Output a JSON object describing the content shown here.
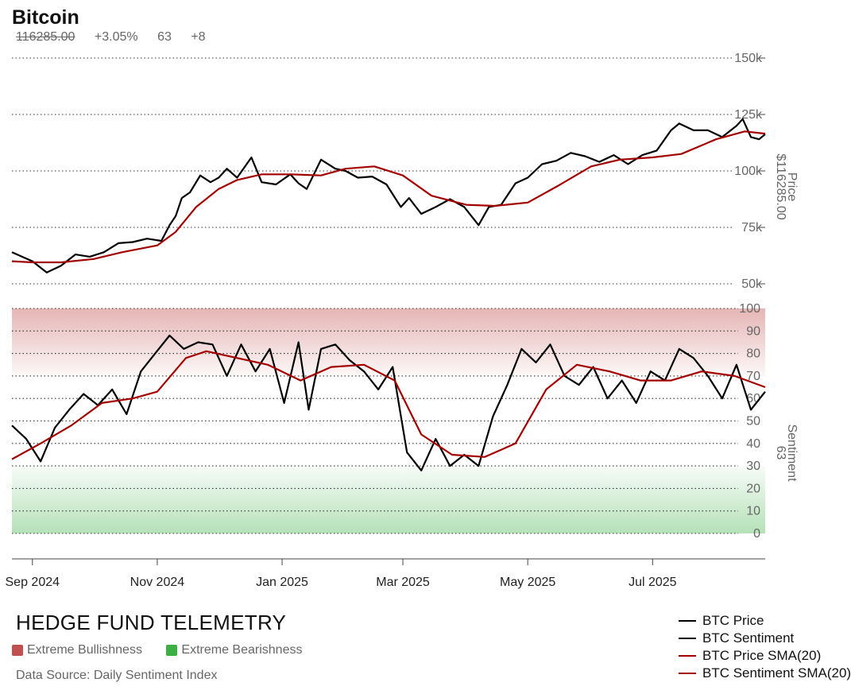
{
  "header": {
    "title": "Bitcoin",
    "price": "116285.00",
    "change": "+3.05%",
    "sentiment": "63",
    "sentiment_change": "+8"
  },
  "footer": {
    "brand": "HEDGE FUND TELEMETRY",
    "extreme_bull": "Extreme Bullishness",
    "extreme_bear": "Extreme Bearishness",
    "source": "Data Source: Daily Sentiment Index"
  },
  "colors": {
    "price_line": "#000000",
    "sma_line": "#a40000",
    "bull_zone": "#c0504d",
    "bear_zone": "#3cb043",
    "grid": "#333333",
    "axis_text": "#666666"
  },
  "chart_data": [
    {
      "type": "line",
      "ylabel": "Price",
      "ylabel_value": "$116285.00",
      "ylim": [
        50000,
        150000
      ],
      "yticks": [
        50000,
        75000,
        100000,
        125000,
        150000
      ],
      "ytick_labels": [
        "50k",
        "75k",
        "100k",
        "125k",
        "150k"
      ],
      "grid": true,
      "series": [
        {
          "name": "BTC Price",
          "color": "#000000",
          "x": [
            "2024-08-22",
            "2024-09-01",
            "2024-09-08",
            "2024-09-15",
            "2024-09-22",
            "2024-09-29",
            "2024-10-06",
            "2024-10-13",
            "2024-10-20",
            "2024-10-27",
            "2024-11-03",
            "2024-11-07",
            "2024-11-10",
            "2024-11-13",
            "2024-11-17",
            "2024-11-22",
            "2024-11-27",
            "2024-12-01",
            "2024-12-05",
            "2024-12-10",
            "2024-12-17",
            "2024-12-22",
            "2024-12-29",
            "2025-01-05",
            "2025-01-09",
            "2025-01-13",
            "2025-01-20",
            "2025-01-27",
            "2025-02-01",
            "2025-02-07",
            "2025-02-14",
            "2025-02-21",
            "2025-02-28",
            "2025-03-04",
            "2025-03-10",
            "2025-03-17",
            "2025-03-24",
            "2025-03-31",
            "2025-04-07",
            "2025-04-12",
            "2025-04-18",
            "2025-04-25",
            "2025-05-01",
            "2025-05-08",
            "2025-05-15",
            "2025-05-22",
            "2025-05-29",
            "2025-06-05",
            "2025-06-12",
            "2025-06-19",
            "2025-06-26",
            "2025-07-03",
            "2025-07-10",
            "2025-07-14",
            "2025-07-21",
            "2025-07-28",
            "2025-08-04",
            "2025-08-11",
            "2025-08-14",
            "2025-08-18",
            "2025-08-22",
            "2025-08-25"
          ],
          "values": [
            64000,
            60000,
            55000,
            58000,
            63000,
            62000,
            64000,
            68000,
            68500,
            70000,
            69000,
            76000,
            80000,
            88000,
            90500,
            98000,
            95000,
            97000,
            101000,
            97000,
            106000,
            95000,
            94000,
            98500,
            94500,
            92000,
            105000,
            101000,
            100000,
            97000,
            97500,
            94000,
            84000,
            88000,
            81000,
            84000,
            87500,
            84000,
            76000,
            84000,
            85000,
            94500,
            97000,
            103000,
            104500,
            108000,
            106500,
            104000,
            107000,
            103000,
            107000,
            109000,
            118000,
            121000,
            118000,
            118000,
            115000,
            120000,
            123000,
            115000,
            114000,
            116285
          ]
        },
        {
          "name": "BTC Price SMA(20)",
          "color": "#a40000",
          "x": [
            "2024-08-22",
            "2024-09-01",
            "2024-09-15",
            "2024-10-01",
            "2024-10-15",
            "2024-11-01",
            "2024-11-10",
            "2024-11-20",
            "2024-12-01",
            "2024-12-10",
            "2024-12-22",
            "2025-01-05",
            "2025-01-20",
            "2025-02-01",
            "2025-02-15",
            "2025-03-01",
            "2025-03-15",
            "2025-04-01",
            "2025-04-15",
            "2025-05-01",
            "2025-05-15",
            "2025-06-01",
            "2025-06-15",
            "2025-07-01",
            "2025-07-15",
            "2025-08-01",
            "2025-08-15",
            "2025-08-25"
          ],
          "values": [
            60000,
            59500,
            59500,
            61000,
            64000,
            67000,
            73000,
            84000,
            92000,
            96000,
            98500,
            98500,
            98000,
            101000,
            102000,
            98000,
            89000,
            85000,
            84500,
            86000,
            93000,
            102000,
            105000,
            106000,
            107500,
            114000,
            117500,
            116500
          ]
        }
      ]
    },
    {
      "type": "line",
      "ylabel": "Sentiment",
      "ylabel_value": "63",
      "ylim": [
        0,
        100
      ],
      "yticks": [
        0,
        10,
        20,
        30,
        40,
        50,
        60,
        70,
        80,
        90,
        100
      ],
      "ytick_labels": [
        "0",
        "10",
        "20",
        "30",
        "40",
        "50",
        "60",
        "70",
        "80",
        "90",
        "100"
      ],
      "grid": true,
      "zones": [
        {
          "name": "Extreme Bullishness",
          "range": [
            70,
            100
          ],
          "color": "#c0504d"
        },
        {
          "name": "Extreme Bearishness",
          "range": [
            0,
            30
          ],
          "color": "#3cb043"
        }
      ],
      "series": [
        {
          "name": "BTC Sentiment",
          "color": "#000000",
          "x": [
            "2024-08-22",
            "2024-08-29",
            "2024-09-05",
            "2024-09-12",
            "2024-09-19",
            "2024-09-26",
            "2024-10-03",
            "2024-10-10",
            "2024-10-17",
            "2024-10-24",
            "2024-10-31",
            "2024-11-07",
            "2024-11-14",
            "2024-11-21",
            "2024-11-28",
            "2024-12-05",
            "2024-12-12",
            "2024-12-19",
            "2024-12-26",
            "2025-01-02",
            "2025-01-09",
            "2025-01-14",
            "2025-01-20",
            "2025-01-27",
            "2025-02-03",
            "2025-02-10",
            "2025-02-17",
            "2025-02-24",
            "2025-03-03",
            "2025-03-10",
            "2025-03-17",
            "2025-03-24",
            "2025-03-31",
            "2025-04-07",
            "2025-04-14",
            "2025-04-21",
            "2025-04-28",
            "2025-05-05",
            "2025-05-12",
            "2025-05-19",
            "2025-05-26",
            "2025-06-02",
            "2025-06-09",
            "2025-06-16",
            "2025-06-23",
            "2025-06-30",
            "2025-07-07",
            "2025-07-14",
            "2025-07-21",
            "2025-07-28",
            "2025-08-04",
            "2025-08-11",
            "2025-08-18",
            "2025-08-25"
          ],
          "values": [
            48,
            42,
            32,
            47,
            55,
            62,
            57,
            64,
            53,
            72,
            80,
            88,
            82,
            85,
            84,
            70,
            84,
            72,
            82,
            58,
            85,
            55,
            82,
            84,
            77,
            72,
            64,
            74,
            36,
            28,
            42,
            30,
            35,
            30,
            52,
            66,
            82,
            76,
            84,
            70,
            66,
            74,
            60,
            68,
            58,
            72,
            68,
            82,
            78,
            70,
            60,
            75,
            55,
            63
          ]
        },
        {
          "name": "BTC Sentiment SMA(20)",
          "color": "#a40000",
          "x": [
            "2024-08-22",
            "2024-09-05",
            "2024-09-20",
            "2024-10-05",
            "2024-10-20",
            "2024-11-01",
            "2024-11-15",
            "2024-11-25",
            "2024-12-10",
            "2024-12-25",
            "2025-01-10",
            "2025-01-25",
            "2025-02-10",
            "2025-02-25",
            "2025-03-10",
            "2025-03-25",
            "2025-04-10",
            "2025-04-25",
            "2025-05-10",
            "2025-05-25",
            "2025-06-10",
            "2025-06-25",
            "2025-07-10",
            "2025-07-25",
            "2025-08-10",
            "2025-08-25"
          ],
          "values": [
            33,
            40,
            48,
            58,
            60,
            63,
            78,
            81,
            78,
            75,
            68,
            74,
            75,
            68,
            44,
            35,
            34,
            40,
            64,
            75,
            72,
            68,
            68,
            72,
            70,
            65
          ]
        }
      ]
    }
  ],
  "x_axis": {
    "ticks": [
      "2024-09-01",
      "2024-11-01",
      "2025-01-01",
      "2025-03-01",
      "2025-05-01",
      "2025-07-01"
    ],
    "tick_labels": [
      "Sep 2024",
      "Nov 2024",
      "Jan 2025",
      "Mar 2025",
      "May 2025",
      "Jul 2025"
    ],
    "range": [
      "2024-08-22",
      "2025-08-25"
    ]
  },
  "legend": [
    "BTC Price",
    "BTC Sentiment",
    "BTC Price SMA(20)",
    "BTC Sentiment SMA(20)"
  ]
}
